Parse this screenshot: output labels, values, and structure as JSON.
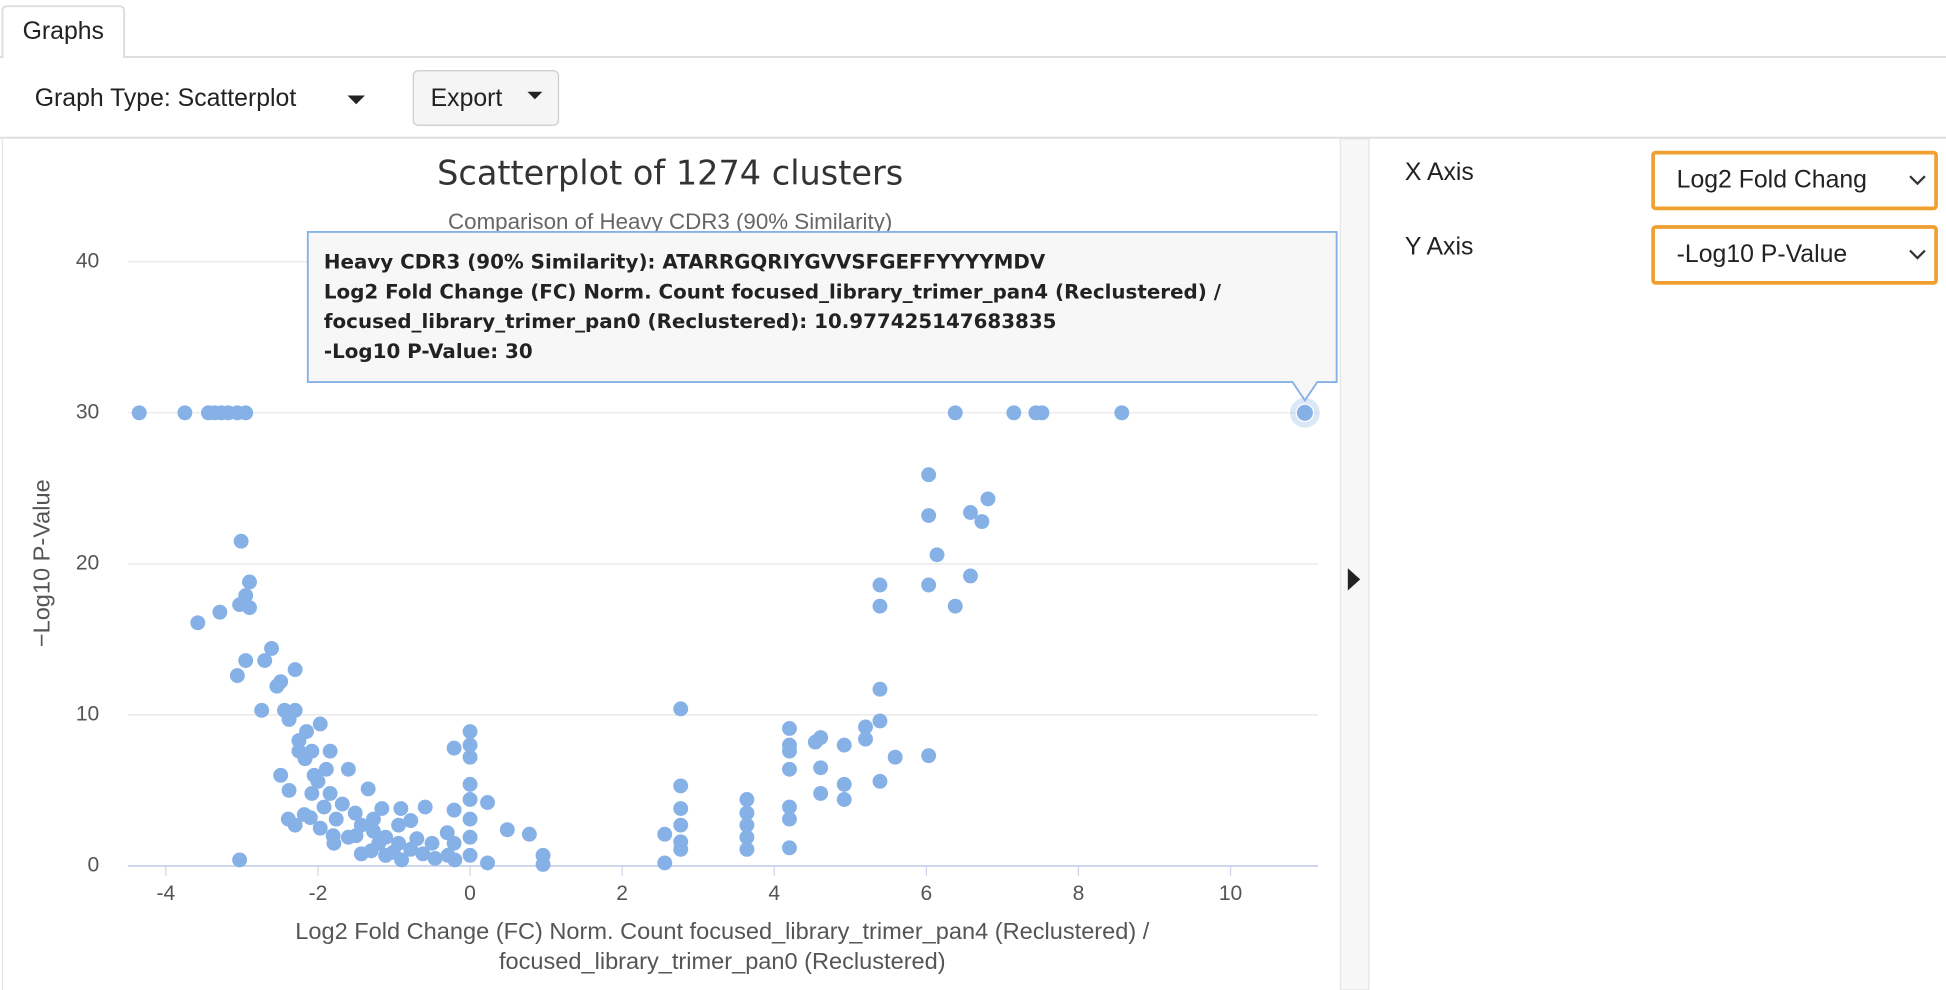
{
  "tabs": {
    "active": "Graphs"
  },
  "toolbar": {
    "graph_type": "Graph Type: Scatterplot",
    "export": "Export"
  },
  "chart_data": {
    "type": "scatter",
    "title": "Scatterplot of 1274 clusters",
    "subtitle": "Comparison of Heavy CDR3 (90% Similarity)",
    "x_label": [
      "Log2 Fold Change (FC) Norm. Count focused_library_trimer_pan4 (Reclustered) /",
      "focused_library_trimer_pan0 (Reclustered)"
    ],
    "y_label": "−Log10 P-Value",
    "color": "#86b1e6",
    "grid": true,
    "xlim": [
      -4.5,
      11.15
    ],
    "ylim": [
      0,
      40
    ],
    "xticks": [
      -4,
      -2,
      0,
      2,
      4,
      6,
      8,
      10
    ],
    "yticks": [
      0,
      10,
      20,
      30,
      40
    ],
    "x": [
      -4.35,
      -3.75,
      -3.44,
      -3.36,
      -3.27,
      -3.18,
      -3.06,
      -2.95,
      6.38,
      7.15,
      7.44,
      7.52,
      8.57,
      10.977425147683835,
      6.03,
      6.03,
      6.14,
      6.03,
      6.58,
      6.81,
      6.73,
      6.58,
      6.38,
      5.39,
      5.39,
      5.39,
      5.39,
      5.39,
      5.59,
      6.03,
      5.2,
      5.2,
      4.92,
      4.92,
      4.92,
      4.61,
      4.54,
      4.61,
      4.61,
      4.2,
      4.2,
      4.2,
      4.2,
      4.2,
      4.2,
      4.2,
      3.64,
      3.64,
      3.64,
      3.64,
      3.64,
      2.77,
      2.77,
      2.77,
      2.77,
      2.77,
      2.77,
      2.56,
      2.56,
      0,
      0,
      0,
      -0.21,
      0,
      0,
      0,
      0,
      0,
      0.23,
      0.49,
      0.78,
      0.96,
      0.96,
      0.23,
      -0.21,
      -0.21,
      -0.29,
      -3.01,
      -2.9,
      -2.95,
      -2.9,
      -3.03,
      -3.29,
      -3.58,
      -3.06,
      -2.95,
      -2.61,
      -2.7,
      -2.49,
      -2.3,
      -2.54,
      -2.74,
      -2.44,
      -2.3,
      -2.38,
      -1.97,
      -2.15,
      -2.25,
      -2.08,
      -1.84,
      -1.89,
      -1.6,
      -1.34,
      -2.05,
      -2.49,
      -2.38,
      -2.39,
      -2.3,
      -2.18,
      -1.97,
      -1.79,
      -3.03,
      -2.25,
      -2.17,
      -2.0,
      -1.84,
      -1.68,
      -1.51,
      -1.43,
      -1.27,
      -1.11,
      -0.94,
      -0.78,
      -0.62,
      -0.46,
      -1.11,
      -1.43,
      -1.6,
      -1.27,
      -0.94,
      -0.78,
      -0.59,
      -0.91,
      -1.16,
      -1.01,
      -1.76,
      -1.92,
      -2.08,
      -0.5,
      -0.3,
      -0.7,
      -1.3,
      -1.5,
      -0.2,
      -1.8,
      -2.1,
      -1.2,
      -0.9
    ],
    "values": [
      30,
      30,
      30,
      30,
      30,
      30,
      30,
      30,
      30,
      30,
      30,
      30,
      30,
      30,
      25.9,
      23.2,
      20.6,
      18.6,
      23.4,
      24.3,
      22.8,
      19.2,
      17.2,
      18.6,
      17.2,
      11.7,
      9.6,
      5.6,
      7.2,
      7.3,
      9.2,
      8.4,
      8.0,
      5.4,
      4.4,
      8.5,
      8.2,
      6.5,
      4.8,
      9.1,
      8.0,
      7.6,
      6.4,
      3.9,
      3.1,
      1.2,
      4.4,
      3.5,
      2.7,
      1.9,
      1.1,
      10.4,
      5.3,
      3.8,
      2.7,
      1.6,
      1.1,
      2.1,
      0.2,
      8.9,
      8.0,
      7.2,
      7.8,
      5.4,
      4.4,
      3.1,
      1.9,
      0.7,
      4.2,
      2.4,
      2.1,
      0.7,
      0.1,
      0.2,
      3.7,
      1.5,
      0.7,
      21.5,
      18.8,
      17.9,
      17.1,
      17.3,
      16.8,
      16.1,
      12.6,
      13.6,
      14.4,
      13.6,
      12.2,
      13.0,
      11.9,
      10.3,
      10.3,
      10.3,
      9.7,
      9.4,
      8.9,
      8.3,
      7.6,
      7.6,
      6.4,
      6.4,
      5.1,
      6.0,
      6.0,
      5.0,
      3.1,
      2.7,
      3.4,
      2.5,
      1.5,
      0.4,
      7.6,
      7.1,
      5.6,
      4.8,
      4.1,
      3.5,
      2.7,
      2.3,
      1.9,
      1.5,
      1.1,
      0.8,
      0.5,
      0.7,
      0.8,
      1.9,
      3.1,
      2.7,
      3.0,
      3.9,
      3.8,
      3.8,
      0.9,
      3.1,
      3.9,
      4.8,
      1.5,
      2.2,
      1.8,
      1.0,
      2.0,
      0.4,
      2.0,
      3.2,
      1.5,
      0.4
    ],
    "highlighted_point": {
      "x": 10.977425147683835,
      "y": 30
    },
    "tooltip": [
      "Heavy CDR3 (90% Similarity): ATARRGQRIYGVVSFGEFFYYYYMDV",
      "Log2 Fold Change (FC) Norm. Count focused_library_trimer_pan4 (Reclustered) /",
      "focused_library_trimer_pan0 (Reclustered): 10.977425147683835",
      "-Log10 P-Value: 30"
    ]
  },
  "axis_settings": {
    "x_label": "X Axis",
    "x_value": "Log2 Fold Chang",
    "y_label": "Y Axis",
    "y_value": "-Log10 P-Value"
  }
}
